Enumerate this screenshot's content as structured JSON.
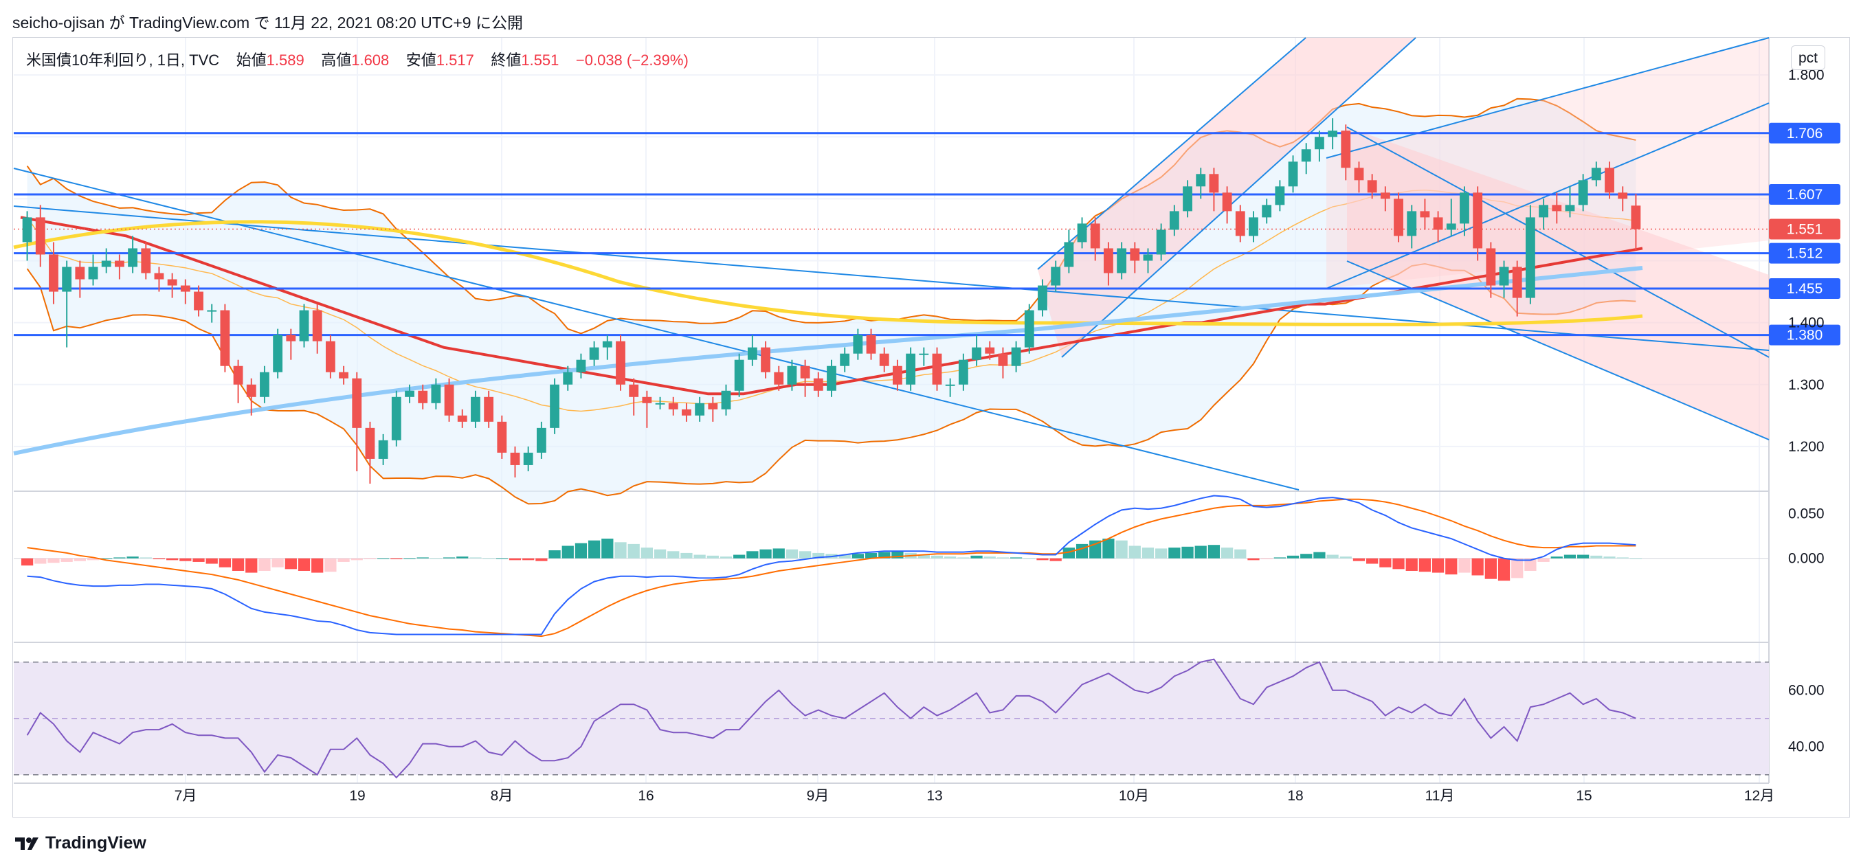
{
  "header": {
    "publish_line": "seicho-ojisan が TradingView.com で 11月 22, 2021 08:20 UTC+9 に公開"
  },
  "legend": {
    "symbol": "米国債10年利回り, 1日, TVC",
    "open_label": "始値",
    "open_value": "1.589",
    "high_label": "高値",
    "high_value": "1.608",
    "low_label": "安値",
    "low_value": "1.517",
    "close_label": "終値",
    "close_value": "1.551",
    "change": "−0.038 (−2.39%)"
  },
  "unit_button": "pct",
  "footer": {
    "brand": "TradingView"
  },
  "colors": {
    "up": "#26a69a",
    "down": "#ef5350",
    "hline": "#2962ff",
    "grid": "#f0f3fa",
    "rsi_band": "#ede7f6",
    "rsi_line": "#7e57c2",
    "macd_line": "#2962ff",
    "signal_line": "#ff6d00",
    "bb_fill": "#e3f2fd",
    "channel_fill": "#ffcdd2",
    "ma_red": "#e53935",
    "ma_yellow": "#fdd835",
    "ma_blue": "#90caf9"
  },
  "chart_data": {
    "type": "candlestick",
    "title": "米国債10年利回り, 1日, TVC",
    "price_axis": {
      "ylim": [
        1.13,
        1.86
      ],
      "ticks": [
        "1.200",
        "1.300",
        "1.400",
        "1.800"
      ],
      "unit": "pct"
    },
    "x_axis": {
      "ticks": [
        "7月",
        "19",
        "8月",
        "16",
        "9月",
        "13",
        "10月",
        "18",
        "11月",
        "15",
        "12月"
      ]
    },
    "horizontal_levels": [
      "1.706",
      "1.607",
      "1.512",
      "1.455",
      "1.380"
    ],
    "last_price": "1.551",
    "candles": [
      [
        1.53,
        1.57,
        1.58,
        1.5
      ],
      [
        1.57,
        1.51,
        1.59,
        1.49
      ],
      [
        1.51,
        1.45,
        1.53,
        1.43
      ],
      [
        1.45,
        1.49,
        1.5,
        1.36
      ],
      [
        1.49,
        1.47,
        1.5,
        1.44
      ],
      [
        1.47,
        1.49,
        1.51,
        1.46
      ],
      [
        1.49,
        1.5,
        1.52,
        1.48
      ],
      [
        1.5,
        1.49,
        1.51,
        1.47
      ],
      [
        1.49,
        1.52,
        1.54,
        1.48
      ],
      [
        1.52,
        1.48,
        1.53,
        1.47
      ],
      [
        1.48,
        1.47,
        1.49,
        1.45
      ],
      [
        1.47,
        1.46,
        1.48,
        1.44
      ],
      [
        1.46,
        1.45,
        1.47,
        1.43
      ],
      [
        1.45,
        1.42,
        1.46,
        1.41
      ],
      [
        1.42,
        1.42,
        1.43,
        1.4
      ],
      [
        1.42,
        1.33,
        1.43,
        1.32
      ],
      [
        1.33,
        1.3,
        1.34,
        1.27
      ],
      [
        1.3,
        1.28,
        1.31,
        1.25
      ],
      [
        1.28,
        1.32,
        1.33,
        1.27
      ],
      [
        1.32,
        1.38,
        1.39,
        1.31
      ],
      [
        1.38,
        1.37,
        1.39,
        1.34
      ],
      [
        1.37,
        1.42,
        1.43,
        1.36
      ],
      [
        1.42,
        1.37,
        1.43,
        1.35
      ],
      [
        1.37,
        1.32,
        1.38,
        1.31
      ],
      [
        1.32,
        1.31,
        1.33,
        1.3
      ],
      [
        1.31,
        1.23,
        1.32,
        1.16
      ],
      [
        1.23,
        1.18,
        1.24,
        1.14
      ],
      [
        1.18,
        1.21,
        1.22,
        1.17
      ],
      [
        1.21,
        1.28,
        1.29,
        1.2
      ],
      [
        1.28,
        1.29,
        1.3,
        1.27
      ],
      [
        1.29,
        1.27,
        1.3,
        1.26
      ],
      [
        1.27,
        1.3,
        1.31,
        1.26
      ],
      [
        1.3,
        1.25,
        1.31,
        1.24
      ],
      [
        1.25,
        1.24,
        1.26,
        1.23
      ],
      [
        1.24,
        1.28,
        1.29,
        1.23
      ],
      [
        1.28,
        1.24,
        1.29,
        1.23
      ],
      [
        1.24,
        1.19,
        1.25,
        1.18
      ],
      [
        1.19,
        1.17,
        1.2,
        1.15
      ],
      [
        1.17,
        1.19,
        1.2,
        1.16
      ],
      [
        1.19,
        1.23,
        1.24,
        1.18
      ],
      [
        1.23,
        1.3,
        1.31,
        1.22
      ],
      [
        1.3,
        1.32,
        1.33,
        1.29
      ],
      [
        1.32,
        1.34,
        1.35,
        1.31
      ],
      [
        1.34,
        1.36,
        1.37,
        1.33
      ],
      [
        1.36,
        1.37,
        1.38,
        1.34
      ],
      [
        1.37,
        1.3,
        1.38,
        1.29
      ],
      [
        1.3,
        1.28,
        1.31,
        1.25
      ],
      [
        1.28,
        1.27,
        1.29,
        1.23
      ],
      [
        1.27,
        1.27,
        1.28,
        1.26
      ],
      [
        1.27,
        1.26,
        1.28,
        1.25
      ],
      [
        1.26,
        1.25,
        1.27,
        1.24
      ],
      [
        1.25,
        1.27,
        1.28,
        1.24
      ],
      [
        1.27,
        1.26,
        1.28,
        1.24
      ],
      [
        1.26,
        1.29,
        1.3,
        1.25
      ],
      [
        1.29,
        1.34,
        1.35,
        1.28
      ],
      [
        1.34,
        1.36,
        1.38,
        1.33
      ],
      [
        1.36,
        1.32,
        1.37,
        1.31
      ],
      [
        1.32,
        1.3,
        1.33,
        1.29
      ],
      [
        1.3,
        1.33,
        1.34,
        1.29
      ],
      [
        1.33,
        1.31,
        1.34,
        1.28
      ],
      [
        1.31,
        1.29,
        1.32,
        1.28
      ],
      [
        1.29,
        1.33,
        1.34,
        1.28
      ],
      [
        1.33,
        1.35,
        1.36,
        1.32
      ],
      [
        1.35,
        1.38,
        1.39,
        1.34
      ],
      [
        1.38,
        1.35,
        1.39,
        1.34
      ],
      [
        1.35,
        1.33,
        1.36,
        1.32
      ],
      [
        1.33,
        1.3,
        1.34,
        1.29
      ],
      [
        1.3,
        1.35,
        1.36,
        1.29
      ],
      [
        1.35,
        1.35,
        1.36,
        1.33
      ],
      [
        1.35,
        1.3,
        1.36,
        1.29
      ],
      [
        1.3,
        1.3,
        1.31,
        1.28
      ],
      [
        1.3,
        1.34,
        1.35,
        1.29
      ],
      [
        1.34,
        1.36,
        1.38,
        1.33
      ],
      [
        1.36,
        1.35,
        1.37,
        1.34
      ],
      [
        1.35,
        1.33,
        1.36,
        1.31
      ],
      [
        1.33,
        1.36,
        1.37,
        1.32
      ],
      [
        1.36,
        1.42,
        1.43,
        1.35
      ],
      [
        1.42,
        1.46,
        1.47,
        1.41
      ],
      [
        1.46,
        1.49,
        1.5,
        1.45
      ],
      [
        1.49,
        1.53,
        1.55,
        1.48
      ],
      [
        1.53,
        1.56,
        1.57,
        1.52
      ],
      [
        1.56,
        1.52,
        1.57,
        1.5
      ],
      [
        1.52,
        1.48,
        1.53,
        1.46
      ],
      [
        1.48,
        1.52,
        1.53,
        1.47
      ],
      [
        1.52,
        1.5,
        1.53,
        1.48
      ],
      [
        1.5,
        1.51,
        1.52,
        1.48
      ],
      [
        1.51,
        1.55,
        1.56,
        1.5
      ],
      [
        1.55,
        1.58,
        1.59,
        1.54
      ],
      [
        1.58,
        1.62,
        1.63,
        1.57
      ],
      [
        1.62,
        1.64,
        1.65,
        1.6
      ],
      [
        1.64,
        1.61,
        1.65,
        1.58
      ],
      [
        1.61,
        1.58,
        1.62,
        1.56
      ],
      [
        1.58,
        1.54,
        1.59,
        1.53
      ],
      [
        1.54,
        1.57,
        1.58,
        1.53
      ],
      [
        1.57,
        1.59,
        1.6,
        1.56
      ],
      [
        1.59,
        1.62,
        1.63,
        1.58
      ],
      [
        1.62,
        1.66,
        1.67,
        1.61
      ],
      [
        1.66,
        1.68,
        1.69,
        1.64
      ],
      [
        1.68,
        1.7,
        1.71,
        1.66
      ],
      [
        1.7,
        1.71,
        1.73,
        1.68
      ],
      [
        1.71,
        1.65,
        1.72,
        1.63
      ],
      [
        1.65,
        1.63,
        1.66,
        1.61
      ],
      [
        1.63,
        1.61,
        1.64,
        1.6
      ],
      [
        1.61,
        1.6,
        1.62,
        1.58
      ],
      [
        1.6,
        1.54,
        1.61,
        1.53
      ],
      [
        1.54,
        1.58,
        1.59,
        1.52
      ],
      [
        1.58,
        1.57,
        1.6,
        1.55
      ],
      [
        1.57,
        1.55,
        1.58,
        1.53
      ],
      [
        1.55,
        1.56,
        1.6,
        1.54
      ],
      [
        1.56,
        1.61,
        1.62,
        1.54
      ],
      [
        1.61,
        1.52,
        1.62,
        1.5
      ],
      [
        1.52,
        1.46,
        1.53,
        1.44
      ],
      [
        1.46,
        1.49,
        1.5,
        1.44
      ],
      [
        1.49,
        1.44,
        1.5,
        1.41
      ],
      [
        1.44,
        1.57,
        1.59,
        1.43
      ],
      [
        1.57,
        1.59,
        1.6,
        1.55
      ],
      [
        1.59,
        1.58,
        1.61,
        1.56
      ],
      [
        1.58,
        1.59,
        1.62,
        1.57
      ],
      [
        1.59,
        1.63,
        1.64,
        1.58
      ],
      [
        1.63,
        1.65,
        1.66,
        1.62
      ],
      [
        1.65,
        1.61,
        1.66,
        1.6
      ],
      [
        1.61,
        1.6,
        1.62,
        1.58
      ],
      [
        1.589,
        1.551,
        1.608,
        1.517
      ]
    ],
    "macd": {
      "ylim": [
        -0.09,
        0.075
      ],
      "ticks": [
        "0.050",
        "0.000"
      ],
      "histogram": [
        -0.008,
        -0.006,
        -0.005,
        -0.004,
        -0.003,
        -0.002,
        0.0,
        0.001,
        0.002,
        0.001,
        -0.001,
        -0.002,
        -0.003,
        -0.004,
        -0.006,
        -0.01,
        -0.014,
        -0.016,
        -0.014,
        -0.01,
        -0.012,
        -0.014,
        -0.016,
        -0.015,
        -0.004,
        -0.002,
        -0.001,
        0.0,
        -0.001,
        0.0,
        0.001,
        0.0,
        0.001,
        0.002,
        0.001,
        0.0,
        0.0,
        -0.002,
        -0.002,
        -0.003,
        0.009,
        0.014,
        0.017,
        0.02,
        0.022,
        0.018,
        0.016,
        0.012,
        0.01,
        0.008,
        0.006,
        0.004,
        0.003,
        0.002,
        0.004,
        0.008,
        0.01,
        0.011,
        0.01,
        0.008,
        0.006,
        0.005,
        0.004,
        0.005,
        0.006,
        0.007,
        0.008,
        0.006,
        0.004,
        0.003,
        0.002,
        0.001,
        0.003,
        0.002,
        0.001,
        0.001,
        0.0,
        -0.002,
        -0.003,
        0.012,
        0.016,
        0.02,
        0.022,
        0.02,
        0.014,
        0.012,
        0.011,
        0.012,
        0.013,
        0.014,
        0.015,
        0.012,
        0.01,
        -0.002,
        -0.001,
        0.001,
        0.003,
        0.005,
        0.007,
        0.004,
        0.002,
        -0.003,
        -0.006,
        -0.01,
        -0.012,
        -0.014,
        -0.015,
        -0.016,
        -0.018,
        -0.016,
        -0.019,
        -0.023,
        -0.025,
        -0.022,
        -0.014,
        -0.004,
        0.002,
        0.004,
        0.004,
        0.003,
        0.002,
        0.001,
        0.0
      ],
      "macd_line": [
        -0.02,
        -0.021,
        -0.025,
        -0.028,
        -0.03,
        -0.031,
        -0.031,
        -0.03,
        -0.03,
        -0.029,
        -0.029,
        -0.03,
        -0.031,
        -0.032,
        -0.034,
        -0.04,
        -0.048,
        -0.056,
        -0.06,
        -0.062,
        -0.064,
        -0.067,
        -0.07,
        -0.071,
        -0.075,
        -0.08,
        -0.083,
        -0.084,
        -0.085,
        -0.085,
        -0.085,
        -0.085,
        -0.085,
        -0.085,
        -0.085,
        -0.085,
        -0.085,
        -0.085,
        -0.085,
        -0.085,
        -0.062,
        -0.046,
        -0.034,
        -0.026,
        -0.022,
        -0.02,
        -0.02,
        -0.021,
        -0.02,
        -0.02,
        -0.021,
        -0.022,
        -0.022,
        -0.021,
        -0.018,
        -0.012,
        -0.007,
        -0.004,
        -0.003,
        -0.001,
        0.001,
        0.002,
        0.004,
        0.006,
        0.007,
        0.008,
        0.008,
        0.008,
        0.008,
        0.007,
        0.007,
        0.007,
        0.008,
        0.008,
        0.007,
        0.006,
        0.005,
        0.004,
        0.004,
        0.018,
        0.028,
        0.038,
        0.047,
        0.054,
        0.056,
        0.055,
        0.056,
        0.059,
        0.063,
        0.067,
        0.07,
        0.069,
        0.066,
        0.058,
        0.057,
        0.058,
        0.061,
        0.064,
        0.067,
        0.068,
        0.066,
        0.062,
        0.054,
        0.048,
        0.04,
        0.034,
        0.03,
        0.026,
        0.022,
        0.016,
        0.01,
        0.004,
        0.0,
        -0.002,
        -0.002,
        0.002,
        0.01,
        0.015,
        0.017,
        0.017,
        0.017,
        0.016,
        0.015
      ],
      "signal_line": [
        0.012,
        0.01,
        0.008,
        0.006,
        0.003,
        0.001,
        -0.002,
        -0.004,
        -0.006,
        -0.008,
        -0.01,
        -0.012,
        -0.014,
        -0.016,
        -0.018,
        -0.021,
        -0.024,
        -0.028,
        -0.032,
        -0.036,
        -0.04,
        -0.044,
        -0.048,
        -0.052,
        -0.056,
        -0.06,
        -0.064,
        -0.067,
        -0.07,
        -0.073,
        -0.075,
        -0.077,
        -0.079,
        -0.08,
        -0.082,
        -0.083,
        -0.084,
        -0.085,
        -0.086,
        -0.087,
        -0.084,
        -0.078,
        -0.07,
        -0.062,
        -0.054,
        -0.047,
        -0.041,
        -0.036,
        -0.032,
        -0.029,
        -0.027,
        -0.025,
        -0.024,
        -0.023,
        -0.022,
        -0.02,
        -0.017,
        -0.014,
        -0.012,
        -0.01,
        -0.008,
        -0.006,
        -0.004,
        -0.002,
        0.0,
        0.001,
        0.002,
        0.003,
        0.004,
        0.005,
        0.005,
        0.005,
        0.006,
        0.006,
        0.006,
        0.006,
        0.006,
        0.005,
        0.005,
        0.007,
        0.011,
        0.016,
        0.022,
        0.029,
        0.035,
        0.04,
        0.044,
        0.047,
        0.05,
        0.053,
        0.056,
        0.058,
        0.059,
        0.059,
        0.059,
        0.06,
        0.061,
        0.062,
        0.064,
        0.065,
        0.066,
        0.066,
        0.065,
        0.063,
        0.06,
        0.056,
        0.052,
        0.047,
        0.042,
        0.036,
        0.031,
        0.025,
        0.02,
        0.016,
        0.013,
        0.012,
        0.012,
        0.013,
        0.013,
        0.014,
        0.014,
        0.014,
        0.014
      ]
    },
    "rsi": {
      "ylim": [
        27,
        77
      ],
      "ticks": [
        "60.00",
        "40.00"
      ],
      "band": [
        30,
        70
      ],
      "mid": 50,
      "values": [
        44,
        52,
        48,
        42,
        38,
        45,
        43,
        41,
        45,
        46,
        46,
        48,
        45,
        44,
        44,
        43,
        43,
        38,
        31,
        37,
        36,
        33,
        30,
        39,
        39,
        43,
        37,
        34,
        29,
        34,
        41,
        41,
        40,
        40,
        42,
        38,
        37,
        42,
        38,
        35,
        35,
        36,
        40,
        49,
        52,
        55,
        55,
        53,
        46,
        45,
        45,
        44,
        43,
        46,
        46,
        51,
        56,
        60,
        55,
        51,
        53,
        51,
        50,
        53,
        56,
        59,
        54,
        50,
        54,
        51,
        53,
        56,
        59,
        52,
        53,
        58,
        58,
        56,
        52,
        57,
        62,
        64,
        66,
        63,
        60,
        59,
        61,
        65,
        67,
        70,
        71,
        64,
        57,
        55,
        61,
        63,
        65,
        68,
        70,
        60,
        60,
        58,
        56,
        51,
        54,
        52,
        55,
        52,
        51,
        57,
        49,
        43,
        47,
        42,
        54,
        55,
        57,
        59,
        55,
        57,
        53,
        52,
        50
      ]
    },
    "overlays": {
      "ma_red": [
        1.57,
        1.565,
        1.56,
        1.555,
        1.55,
        1.545,
        1.54,
        1.53,
        1.52,
        1.51,
        1.5,
        1.49,
        1.48,
        1.47,
        1.46,
        1.45,
        1.44,
        1.43,
        1.42,
        1.41,
        1.4,
        1.39,
        1.38,
        1.37,
        1.36,
        1.355,
        1.35,
        1.345,
        1.34,
        1.335,
        1.33,
        1.325,
        1.32,
        1.315,
        1.31,
        1.305,
        1.3,
        1.295,
        1.29,
        1.285,
        1.285,
        1.285,
        1.29,
        1.295,
        1.3,
        1.3,
        1.3,
        1.305,
        1.31,
        1.315,
        1.32,
        1.325,
        1.33,
        1.335,
        1.34,
        1.345,
        1.35,
        1.355,
        1.36,
        1.365,
        1.37,
        1.375,
        1.38,
        1.385,
        1.39,
        1.395,
        1.4,
        1.4,
        1.405,
        1.41,
        1.415,
        1.42,
        1.425,
        1.43,
        1.43,
        1.435,
        1.44,
        1.445,
        1.45,
        1.455,
        1.46,
        1.465,
        1.47,
        1.475,
        1.48,
        1.485,
        1.49,
        1.495,
        1.5,
        1.505,
        1.51,
        1.515,
        1.52
      ],
      "ma_yellow_start": 1.53,
      "ma_blue_start": 1.19
    }
  }
}
